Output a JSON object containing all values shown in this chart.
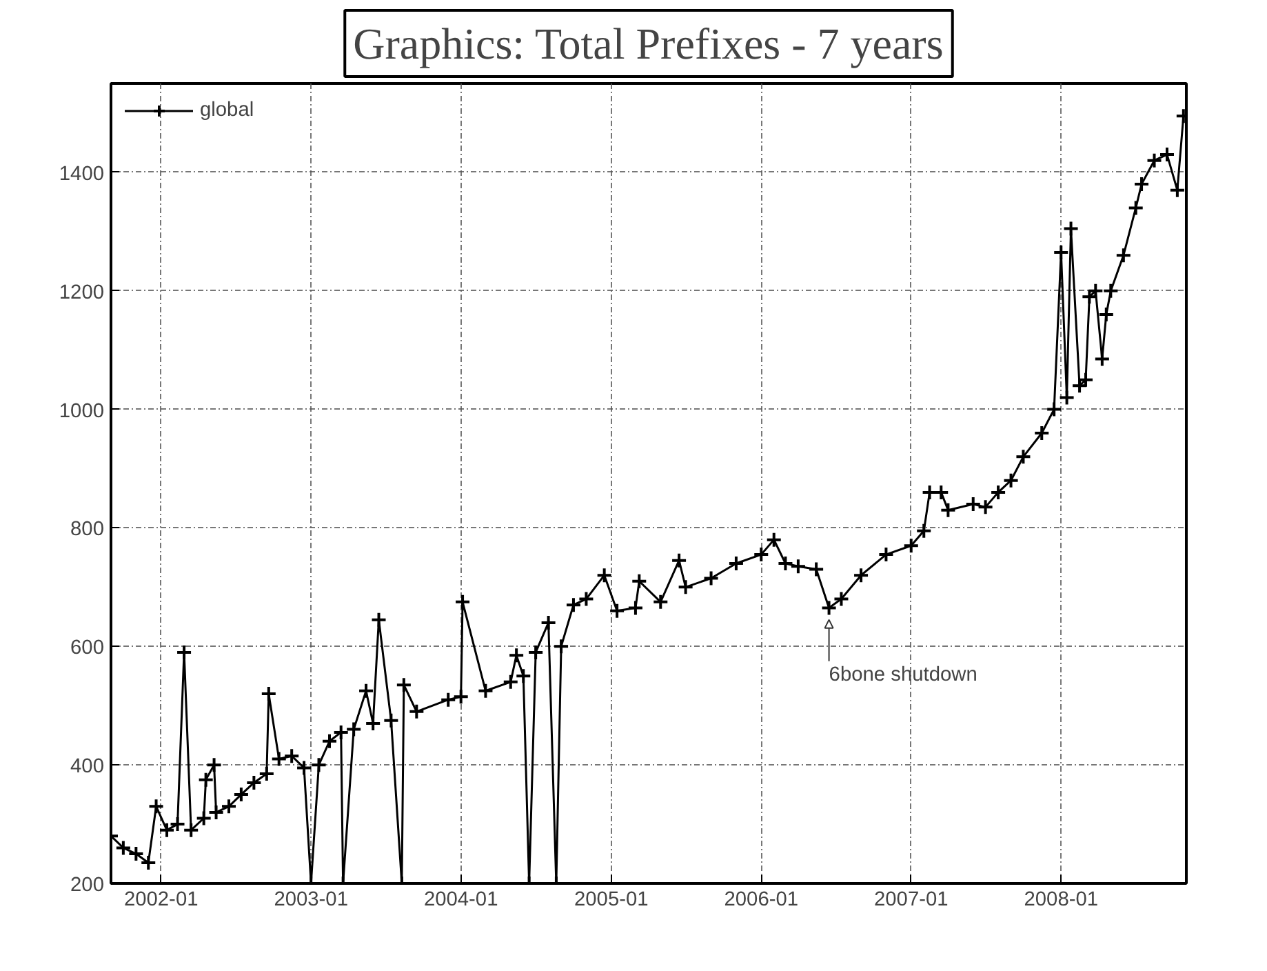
{
  "chart_data": {
    "type": "line",
    "title": "Graphics: Total Prefixes - 7 years",
    "x": [
      "2001-09-01",
      "2001-10-01",
      "2001-11-01",
      "2001-12-01",
      "2001-12-20",
      "2002-01-15",
      "2002-02-10",
      "2002-02-26",
      "2002-03-15",
      "2002-04-15",
      "2002-04-20",
      "2002-05-10",
      "2002-05-15",
      "2002-06-15",
      "2002-07-15",
      "2002-08-15",
      "2002-09-15",
      "2002-09-20",
      "2002-10-15",
      "2002-11-15",
      "2002-12-15",
      "2003-01-01",
      "2003-01-20",
      "2003-02-15",
      "2003-03-15",
      "2003-03-20",
      "2003-04-15",
      "2003-05-15",
      "2003-06-01",
      "2003-06-15",
      "2003-07-15",
      "2003-08-10",
      "2003-08-15",
      "2003-09-15",
      "2003-12-01",
      "2004-01-01",
      "2004-01-05",
      "2004-03-01",
      "2004-05-01",
      "2004-05-15",
      "2004-06-01",
      "2004-06-15",
      "2004-07-01",
      "2004-08-01",
      "2004-08-20",
      "2004-09-01",
      "2004-10-01",
      "2004-11-01",
      "2004-12-15",
      "2005-01-15",
      "2005-03-01",
      "2005-03-10",
      "2005-05-01",
      "2005-06-15",
      "2005-07-01",
      "2005-09-01",
      "2005-11-01",
      "2006-01-01",
      "2006-02-01",
      "2006-03-01",
      "2006-04-01",
      "2006-05-15",
      "2006-06-15",
      "2006-07-15",
      "2006-09-01",
      "2006-11-01",
      "2007-01-01",
      "2007-02-01",
      "2007-02-15",
      "2007-03-15",
      "2007-04-01",
      "2007-06-01",
      "2007-07-01",
      "2007-08-01",
      "2007-09-01",
      "2007-10-01",
      "2007-11-15",
      "2007-12-15",
      "2008-01-01",
      "2008-01-15",
      "2008-01-25",
      "2008-02-15",
      "2008-03-01",
      "2008-03-10",
      "2008-03-25",
      "2008-04-10",
      "2008-04-20",
      "2008-05-01",
      "2008-06-01",
      "2008-07-01",
      "2008-07-15",
      "2008-08-15",
      "2008-09-15",
      "2008-10-10",
      "2008-10-25"
    ],
    "series": [
      {
        "name": "global",
        "color": "#000000",
        "values": [
          280,
          260,
          250,
          235,
          330,
          290,
          300,
          590,
          290,
          310,
          375,
          400,
          320,
          330,
          350,
          370,
          385,
          520,
          410,
          415,
          395,
          200,
          400,
          440,
          455,
          200,
          460,
          525,
          470,
          645,
          475,
          200,
          535,
          490,
          510,
          515,
          675,
          525,
          540,
          585,
          550,
          200,
          590,
          640,
          200,
          600,
          670,
          680,
          720,
          660,
          665,
          710,
          675,
          745,
          700,
          715,
          740,
          755,
          780,
          740,
          735,
          730,
          665,
          680,
          720,
          755,
          770,
          795,
          860,
          860,
          830,
          840,
          835,
          860,
          880,
          920,
          960,
          1000,
          1265,
          1020,
          1305,
          1040,
          1050,
          1190,
          1200,
          1085,
          1160,
          1200,
          1260,
          1340,
          1380,
          1420,
          1430,
          1370,
          1495
        ]
      }
    ],
    "xlim": [
      "2001-09-01",
      "2008-11-01"
    ],
    "xticks": [
      "2002-01",
      "2003-01",
      "2004-01",
      "2005-01",
      "2006-01",
      "2007-01",
      "2008-01"
    ],
    "ylim": [
      200,
      1550
    ],
    "yticks": [
      200,
      400,
      600,
      800,
      1000,
      1200,
      1400
    ],
    "annotations": [
      {
        "text": "6bone shutdown",
        "x": "2006-06-15",
        "y": 665
      }
    ],
    "grid": true,
    "legend": "top left",
    "marker": "cross",
    "line_style": "solid"
  }
}
